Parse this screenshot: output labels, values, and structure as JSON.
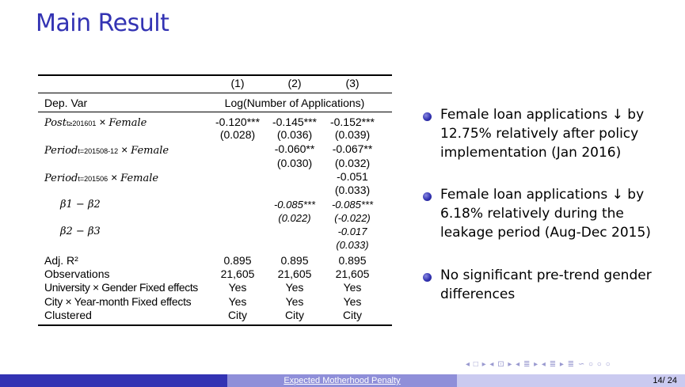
{
  "title": "Main Result",
  "table": {
    "col_headers": [
      "(1)",
      "(2)",
      "(3)"
    ],
    "dep_var_label": "Dep. Var",
    "dep_var_value": "Log(Number of Applications)",
    "row1": {
      "var": "Post",
      "sub": "t≥201601",
      "times": " × ",
      "fem": "Female",
      "c1": "-0.120***",
      "c2": "-0.145***",
      "c3": "-0.152***",
      "se1": "(0.028)",
      "se2": "(0.036)",
      "se3": "(0.039)"
    },
    "row2": {
      "var": "Period",
      "sub": "t=201508-12",
      "times": " × ",
      "fem": "Female",
      "c2": "-0.060**",
      "c3": "-0.067**",
      "se2": "(0.030)",
      "se3": "(0.032)"
    },
    "row3": {
      "var": "Period",
      "sub": "t=201506",
      "times": " × ",
      "fem": "Female",
      "c3": "-0.051",
      "se3": "(0.033)"
    },
    "row4": {
      "label": "β1 − β2",
      "c2": "-0.085***",
      "c3": "-0.085***",
      "se2": "(0.022)",
      "se3": "(-0.022)"
    },
    "row5": {
      "label": "β2 − β3",
      "c3": "-0.017",
      "se3": "(0.033)"
    },
    "stats": [
      {
        "label": "Adj. R²",
        "c1": "0.895",
        "c2": "0.895",
        "c3": "0.895"
      },
      {
        "label": "Observations",
        "c1": "21,605",
        "c2": "21,605",
        "c3": "21,605"
      },
      {
        "label": "University × Gender Fixed effects",
        "c1": "Yes",
        "c2": "Yes",
        "c3": "Yes"
      },
      {
        "label": "City × Year-month Fixed effects",
        "c1": "Yes",
        "c2": "Yes",
        "c3": "Yes"
      },
      {
        "label": "Clustered",
        "c1": "City",
        "c2": "City",
        "c3": "City"
      }
    ]
  },
  "bullets": [
    "Female loan applications ↓ by 12.75% relatively after policy implementation (Jan 2016)",
    "Female loan applications ↓ by 6.18% relatively during the leakage period (Aug-Dec 2015)",
    "No significant pre-trend gender differences"
  ],
  "nav_symbols": "◂ □ ▸ ◂ ⊡ ▸ ◂ ≣ ▸ ◂ ≣ ▸ ≣ ∽ ○ ○ ○",
  "footer": {
    "title": "Expected Motherhood Penalty",
    "page": "14/ 24"
  }
}
